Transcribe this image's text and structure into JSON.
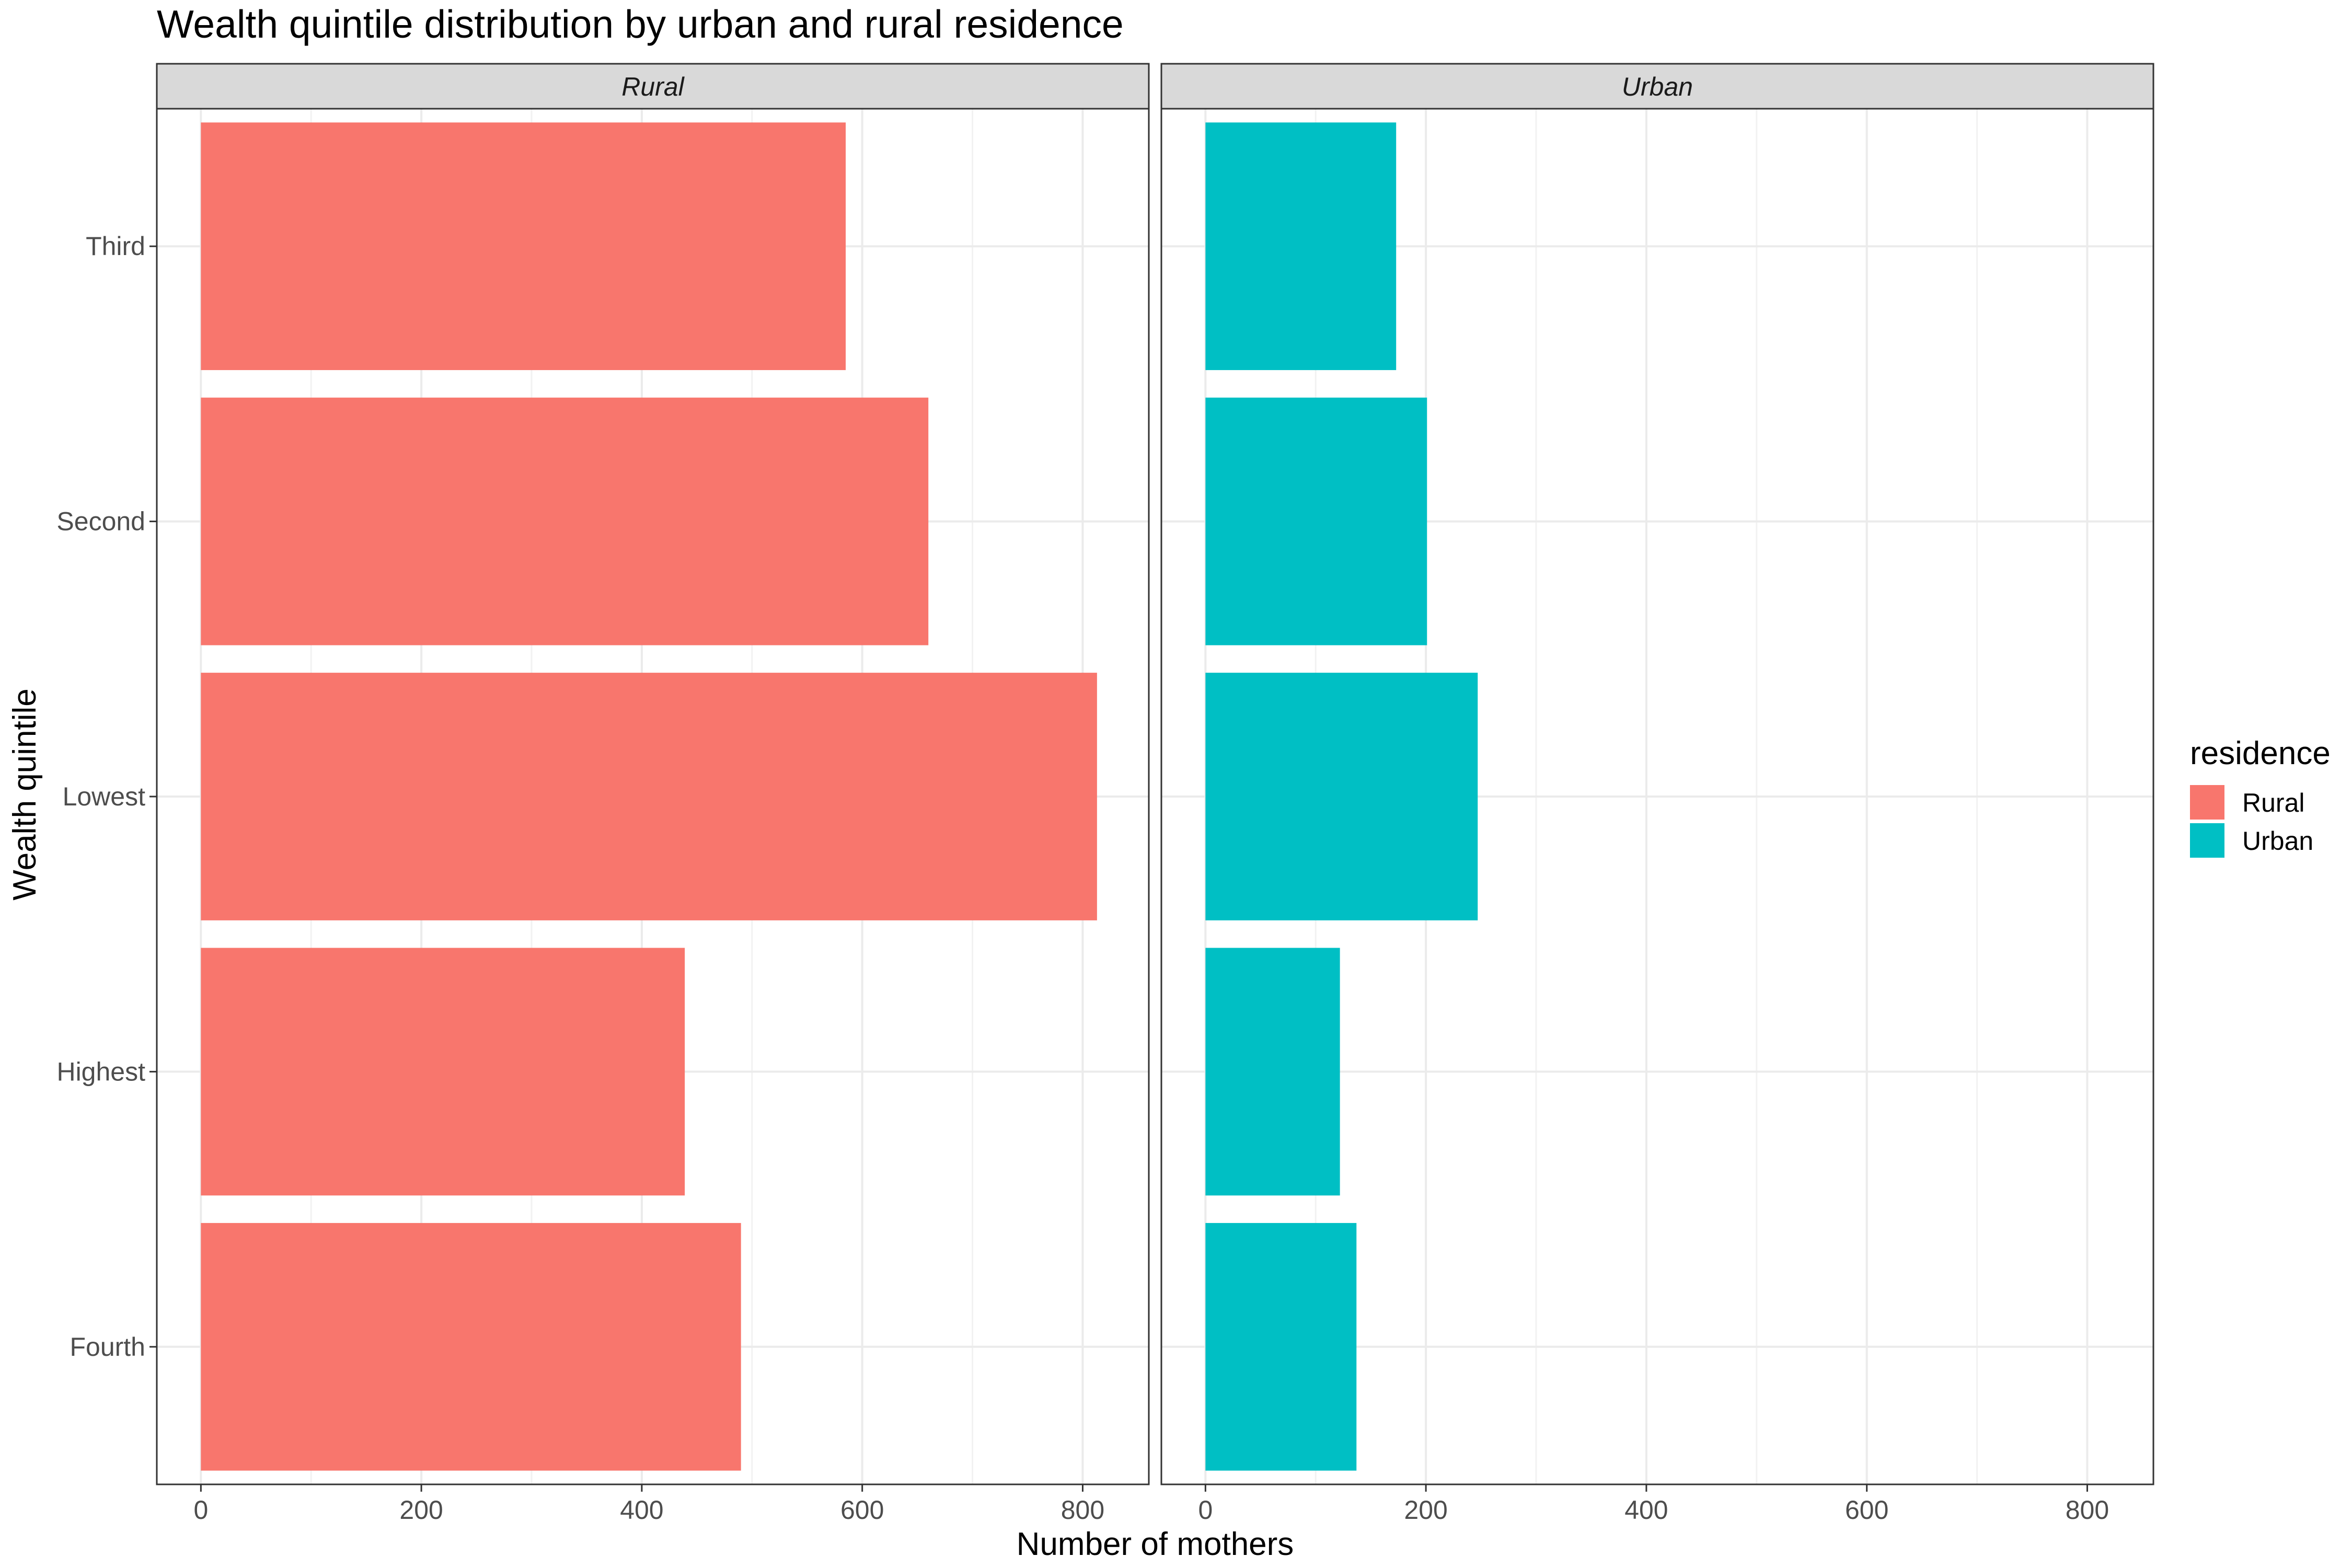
{
  "chart_data": {
    "type": "bar",
    "orientation": "horizontal",
    "title": "Wealth quintile distribution by urban and rural residence",
    "xlabel": "Number of mothers",
    "ylabel": "Wealth quintile",
    "categories": [
      "Fourth",
      "Highest",
      "Lowest",
      "Second",
      "Third"
    ],
    "xlim": [
      -40,
      860
    ],
    "xticks": [
      0,
      200,
      400,
      600,
      800
    ],
    "grid": true,
    "legend": {
      "title": "residence",
      "position": "right",
      "entries": [
        {
          "label": "Rural",
          "color": "#F8766D"
        },
        {
          "label": "Urban",
          "color": "#00BFC4"
        }
      ]
    },
    "panels": [
      {
        "label": "Rural",
        "color": "#F8766D",
        "values": [
          490,
          439,
          813,
          660,
          585
        ]
      },
      {
        "label": "Urban",
        "color": "#00BFC4",
        "values": [
          137,
          122,
          247,
          201,
          173
        ]
      }
    ]
  }
}
